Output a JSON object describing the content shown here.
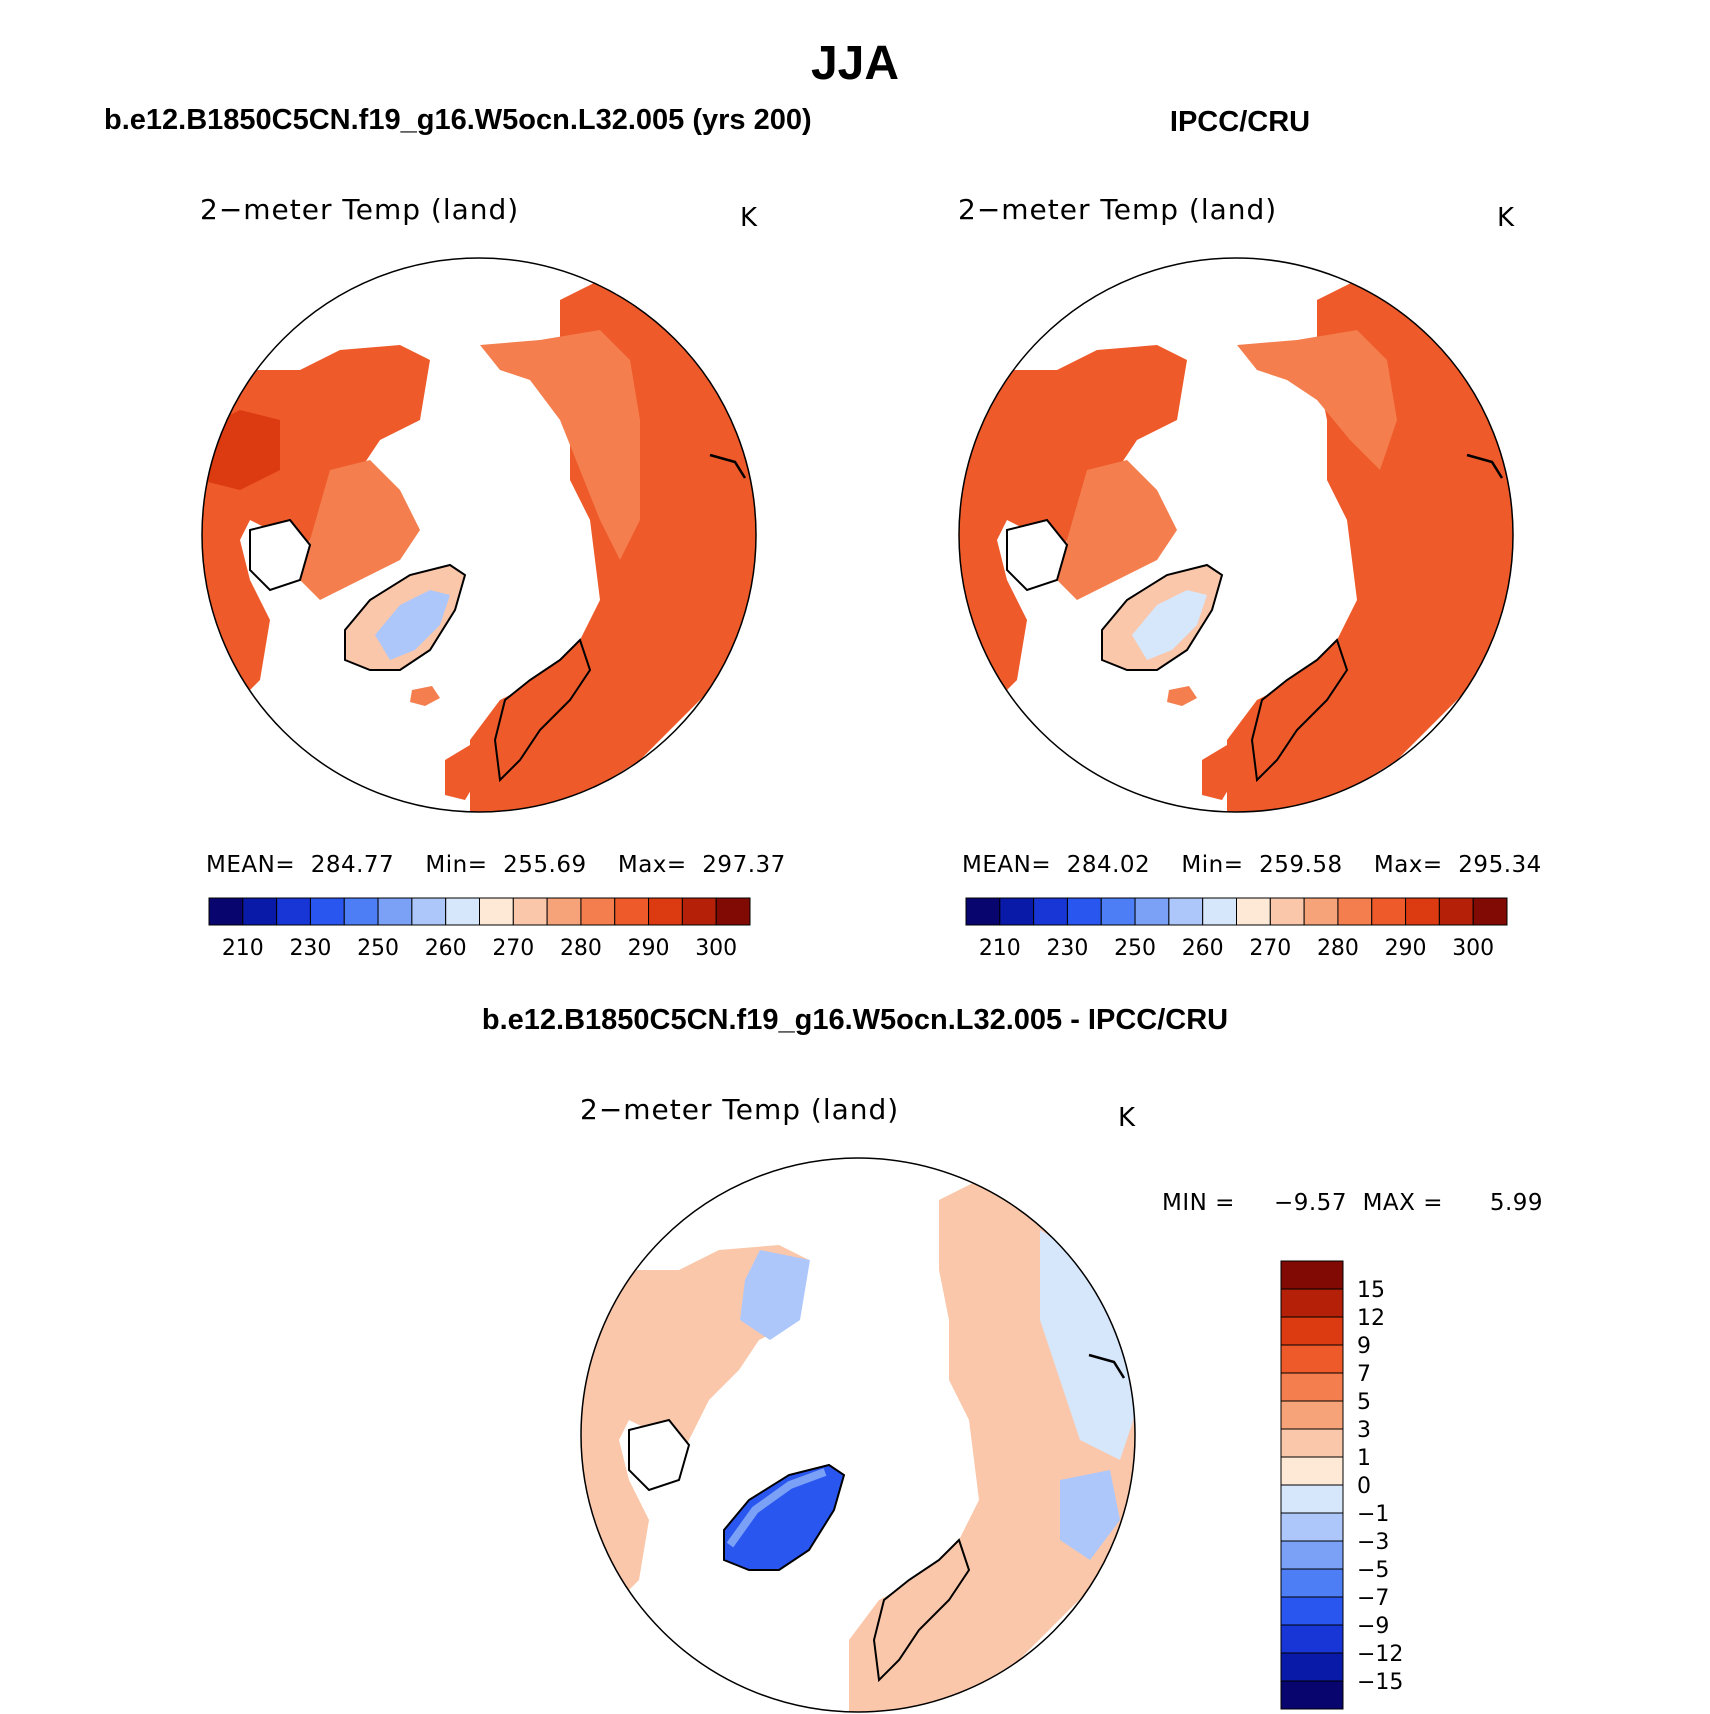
{
  "figure": {
    "title": "JJA",
    "left_heading": "b.e12.B1850C5CN.f19_g16.W5ocn.L32.005 (yrs 200)",
    "right_heading": "IPCC/CRU",
    "diff_heading": "b.e12.B1850C5CN.f19_g16.W5ocn.L32.005 - IPCC/CRU"
  },
  "panels": [
    {
      "id": "model",
      "title": "2−meter Temp (land)",
      "unit": "K",
      "stats": "MEAN=  284.77    Min=  255.69    Max=  297.37",
      "mean": 284.77,
      "min": 255.69,
      "max": 297.37
    },
    {
      "id": "obs",
      "title": "2−meter Temp (land)",
      "unit": "K",
      "stats": "MEAN=  284.02    Min=  259.58    Max=  295.34",
      "mean": 284.02,
      "min": 259.58,
      "max": 295.34
    },
    {
      "id": "diff",
      "title": "2−meter Temp (land)",
      "unit": "K",
      "stats": "MIN =     −9.57  MAX =      5.99",
      "min": -9.57,
      "max": 5.99
    }
  ],
  "colorbars": {
    "absolute": {
      "labels": [
        "210",
        "230",
        "250",
        "260",
        "270",
        "280",
        "290",
        "300"
      ],
      "colors": [
        "#08056e",
        "#0a1aa8",
        "#1836d6",
        "#2a56f0",
        "#4d7ef5",
        "#7ba1f7",
        "#aec7fa",
        "#d6e6fb",
        "#fde9d6",
        "#fbc7aa",
        "#f7a37a",
        "#f47e4e",
        "#ee5a2a",
        "#dc3a10",
        "#b42108",
        "#820a04"
      ]
    },
    "difference": {
      "labels": [
        "15",
        "12",
        "9",
        "7",
        "5",
        "3",
        "1",
        "0",
        "−1",
        "−3",
        "−5",
        "−7",
        "−9",
        "−12",
        "−15"
      ],
      "colors": [
        "#820a04",
        "#b42108",
        "#dc3a10",
        "#ee5a2a",
        "#f47e4e",
        "#f7a37a",
        "#fbc7aa",
        "#fde9d6",
        "#d6e6fb",
        "#aec7fa",
        "#7ba1f7",
        "#4d7ef5",
        "#2a56f0",
        "#1836d6",
        "#0a1aa8",
        "#08056e"
      ]
    }
  }
}
